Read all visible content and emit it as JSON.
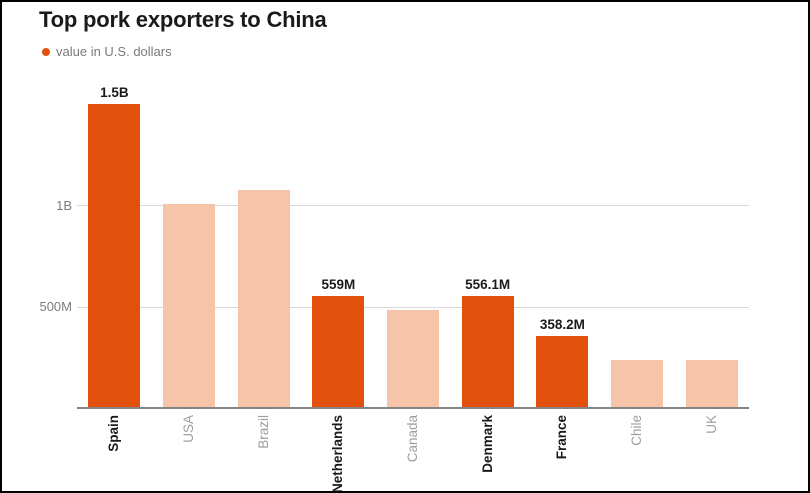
{
  "title": "Top pork exporters to China",
  "legend": {
    "label": "value in U.S. dollars",
    "marker_color": "#e2500e"
  },
  "colors": {
    "highlight_bar": "#e2500e",
    "muted_bar": "#f6c4a8",
    "grid_line": "#d9d9d9",
    "axis_line": "#848484",
    "title_text": "#1a1a1a",
    "value_label_text": "#1a1a1a",
    "y_tick_text": "#7d7d7d",
    "x_label_highlight_text": "#1a1a1a",
    "x_label_muted_text": "#9e9e9e",
    "legend_text": "#7a7a7a",
    "frame_border": "#000000"
  },
  "chart_data": {
    "type": "bar",
    "title": "Top pork exporters to China",
    "legend_entries": [
      "value in U.S. dollars"
    ],
    "legend_position": "top-left",
    "unit": "U.S. dollars",
    "xlabel": "",
    "ylabel": "",
    "grid": true,
    "ylim_millions": [
      0,
      1586
    ],
    "yticks": [
      {
        "value_millions": 1000,
        "label": "1B"
      },
      {
        "value_millions": 500,
        "label": "500M"
      }
    ],
    "categories": [
      "Spain",
      "USA",
      "Brazil",
      "Netherlands",
      "Canada",
      "Denmark",
      "France",
      "Chile",
      "UK"
    ],
    "bars": [
      {
        "country": "Spain",
        "value_millions": 1500,
        "display_label": "1.5B",
        "highlighted": true
      },
      {
        "country": "USA",
        "value_millions": 1010,
        "display_label": null,
        "highlighted": false
      },
      {
        "country": "Brazil",
        "value_millions": 1080,
        "display_label": null,
        "highlighted": false
      },
      {
        "country": "Netherlands",
        "value_millions": 559,
        "display_label": "559M",
        "highlighted": true
      },
      {
        "country": "Canada",
        "value_millions": 490,
        "display_label": null,
        "highlighted": false
      },
      {
        "country": "Denmark",
        "value_millions": 556.1,
        "display_label": "556.1M",
        "highlighted": true
      },
      {
        "country": "France",
        "value_millions": 358.2,
        "display_label": "358.2M",
        "highlighted": true
      },
      {
        "country": "Chile",
        "value_millions": 241,
        "display_label": null,
        "highlighted": false
      },
      {
        "country": "UK",
        "value_millions": 239,
        "display_label": null,
        "highlighted": false
      }
    ]
  }
}
